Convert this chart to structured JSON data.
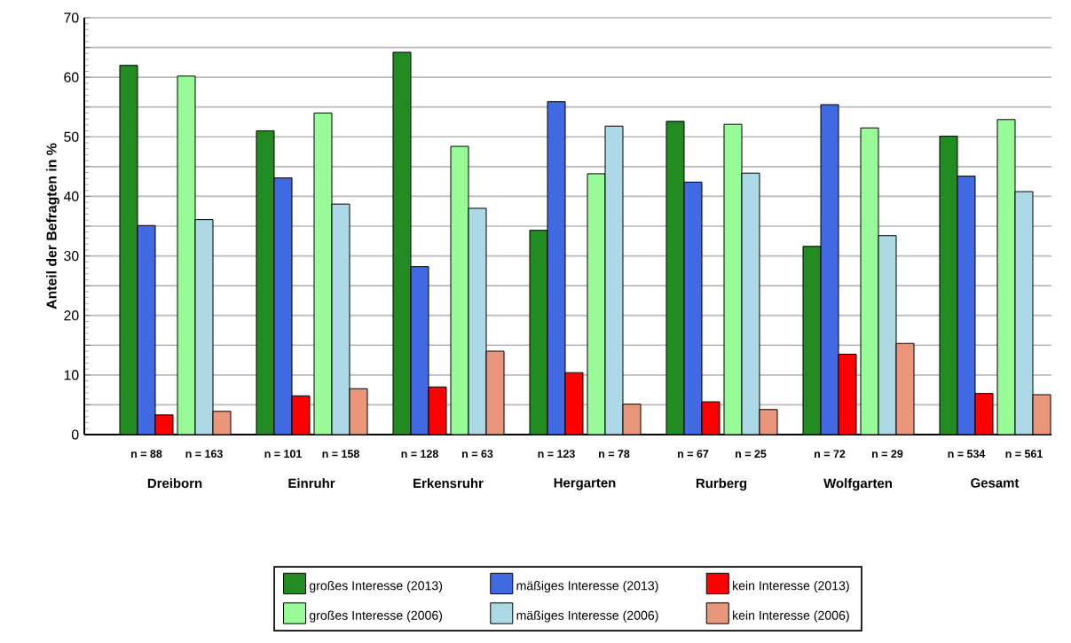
{
  "chart_data": {
    "type": "bar",
    "ylabel": "Anteil der Befragten in %",
    "categories": [
      "Dreiborn",
      "Einruhr",
      "Erkensruhr",
      "Hergarten",
      "Rurberg",
      "Wolfgarten",
      "Gesamt"
    ],
    "series": [
      {
        "name": "großes Interesse (2013)",
        "color": "#228b22",
        "values": [
          62.0,
          51.0,
          64.2,
          34.3,
          52.6,
          31.6,
          50.1
        ]
      },
      {
        "name": "mäßiges Interesse (2013)",
        "color": "#4169e1",
        "values": [
          35.1,
          43.1,
          28.2,
          55.9,
          42.4,
          55.4,
          43.4
        ]
      },
      {
        "name": "kein Interesse (2013)",
        "color": "#ff0000",
        "values": [
          3.3,
          6.5,
          8.0,
          10.4,
          5.5,
          13.5,
          6.9
        ]
      },
      {
        "name": "großes Interesse (2006)",
        "color": "#98fb98",
        "values": [
          60.2,
          54.0,
          48.4,
          43.8,
          52.1,
          51.5,
          52.9
        ]
      },
      {
        "name": "mäßiges Interesse (2006)",
        "color": "#add8e6",
        "values": [
          36.1,
          38.7,
          38.0,
          51.8,
          43.9,
          33.4,
          40.8
        ]
      },
      {
        "name": "kein Interesse (2006)",
        "color": "#e9967a",
        "values": [
          3.9,
          7.7,
          14.0,
          5.1,
          4.2,
          15.3,
          6.7
        ]
      }
    ],
    "ylim": [
      0,
      70
    ],
    "yticks": [
      0,
      {
        "value": 5,
        "label": null
      },
      10,
      {
        "value": 15,
        "label": null
      },
      20,
      {
        "value": 25,
        "label": null
      },
      30,
      {
        "value": 35,
        "label": null
      },
      40,
      {
        "value": 45,
        "label": null
      },
      50,
      {
        "value": 55,
        "label": null
      },
      60,
      {
        "value": 65,
        "label": null
      },
      70
    ],
    "grid": "y",
    "legend": "bottom",
    "annotations": [
      "n = 88",
      "n = 163",
      "n = 101",
      "n = 158",
      "n = 128",
      "n = 63",
      "n = 123",
      "n = 78",
      "n = 67",
      "n = 25",
      "n = 72",
      "n = 29",
      "n = 534",
      "n = 561"
    ]
  }
}
